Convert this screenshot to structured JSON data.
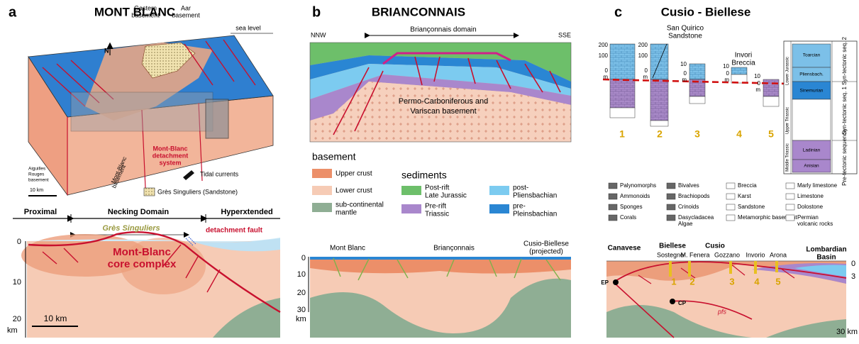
{
  "panel_a": {
    "letter": "a",
    "title": "MONT BLANC",
    "labels": {
      "gastern": [
        "Gastern",
        "basement"
      ],
      "aar": [
        "Aar",
        "basement"
      ],
      "sea_level": "sea level",
      "north": "N",
      "detachment_system": [
        "Mont-Blanc",
        "detachment",
        "system"
      ],
      "mb_basement": [
        "Mont-Blanc",
        "basement"
      ],
      "aiguilles": [
        "Aiguilles",
        "Rouges",
        "basement"
      ],
      "scale": "10 km",
      "tidal": "Tidal currents",
      "gres_legend": "Grès Singuliers (Sandstone)"
    },
    "section": {
      "proximal": "Proximal",
      "necking": "Necking Domain",
      "hyper": "Hyperxtended",
      "gres": "Grès Singuliers",
      "detachment": "detachment fault",
      "core_complex": [
        "Mont-Blanc",
        "core complex"
      ],
      "depth_ticks": [
        0,
        10,
        20
      ],
      "depth_unit": "km",
      "scale": "10 km"
    }
  },
  "panel_b": {
    "letter": "b",
    "title": "BRIANCONNAIS",
    "nnw": "NNW",
    "sse": "SSE",
    "domain": "Briançonnais domain",
    "basement_label": [
      "Permo-Carboniferous and",
      "Variscan basement"
    ],
    "legend": {
      "basement_title": "basement",
      "upper_crust": "Upper crust",
      "lower_crust": "Lower crust",
      "mantle": [
        "sub-continental",
        "mantle"
      ],
      "sediments_title": "sediments",
      "post_rift": [
        "Post-rift",
        "Late Jurassic"
      ],
      "pre_rift": [
        "Pre-rift",
        "Triassic"
      ],
      "post_pliens": [
        "post-",
        "Pliensbachian"
      ],
      "pre_pliens": [
        "pre-",
        "Pleinsbachian"
      ]
    },
    "section": {
      "mont_blanc": "Mont Blanc",
      "brianconnais": "Briançonnais",
      "cusio": [
        "Cusio-Biellese",
        "(projected)"
      ],
      "depth_ticks": [
        0,
        10,
        20,
        30
      ],
      "depth_unit": "km"
    }
  },
  "panel_c": {
    "letter": "c",
    "title": "Cusio - Biellese",
    "san_quirico": [
      "San Quirico",
      "Sandstone"
    ],
    "invori": [
      "Invori",
      "Breccia"
    ],
    "columns": [
      1,
      2,
      3,
      4,
      5
    ],
    "col_scales": [
      {
        "ticks": [
          200,
          100,
          0
        ],
        "unit": "m"
      },
      {
        "ticks": [
          200,
          100,
          0
        ],
        "unit": "m"
      },
      {
        "ticks": [
          10,
          0
        ],
        "unit": "m"
      },
      {
        "ticks": [
          10,
          0
        ],
        "unit": "m"
      },
      {
        "ticks": [
          10,
          0
        ],
        "unit": "m"
      }
    ],
    "strat": {
      "stages": [
        "Toarcian",
        "Pliensbach.",
        "Sinemurian",
        "Ladinian",
        "Anisian"
      ],
      "epochs": [
        "Lower Jurassic",
        "Upper Triassic",
        "Middle Triassic"
      ],
      "sequences": [
        "Syn-tectonic seq. 2",
        "Syn-tectonic seq. 1",
        "Pre-tectonic sequence"
      ]
    },
    "legend": [
      [
        "Palynomorphs",
        "Ammonoids",
        "Sponges",
        "Corals"
      ],
      [
        "Bivalves",
        "Brachiopods",
        "Crinoids",
        [
          "Dasycladacea",
          "Algae"
        ]
      ],
      [
        "Breccia",
        "Karst",
        "Sandstone",
        "Metamorphic basement"
      ],
      [
        "Marly limestone",
        "Limestone",
        "Dolostone",
        [
          "Permian",
          "volcanic rocks"
        ]
      ]
    ],
    "section": {
      "canavese": "Canavese",
      "biellese": "Biellese",
      "cusio": "Cusio",
      "localities": [
        "Sostegno",
        "M. Fenera",
        "Gozzano",
        "Invorio",
        "Arona"
      ],
      "lombardian": [
        "Lombardian",
        "Basin"
      ],
      "depth_ticks": [
        0,
        3
      ],
      "bottom_depth": "30 km",
      "ep": "EP",
      "cp": "CP",
      "pfs": "pfs"
    }
  }
}
